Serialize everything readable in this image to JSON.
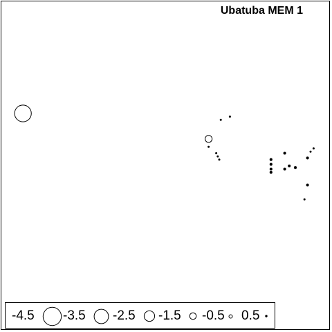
{
  "chart_data": {
    "type": "scatter",
    "title": "Ubatuba MEM 1",
    "axes_visible": false,
    "grid": false,
    "legend_position": "bottom-left",
    "legend": [
      {
        "label": "-4.5",
        "value": -4.5,
        "fill": "open"
      },
      {
        "label": "-3.5",
        "value": -3.5,
        "fill": "open"
      },
      {
        "label": "-2.5",
        "value": -2.5,
        "fill": "open"
      },
      {
        "label": "-1.5",
        "value": -1.5,
        "fill": "open"
      },
      {
        "label": "-0.5",
        "value": -0.5,
        "fill": "open"
      },
      {
        "label": "0.5",
        "value": 0.5,
        "fill": "filled"
      }
    ],
    "points": [
      {
        "x": -0.94,
        "y": 0.4,
        "value": -4.1
      },
      {
        "x": 0.28,
        "y": 0.24,
        "value": -1.6
      },
      {
        "x": 0.36,
        "y": 0.36,
        "value": 0.3
      },
      {
        "x": 0.42,
        "y": 0.38,
        "value": 0.3
      },
      {
        "x": 0.28,
        "y": 0.19,
        "value": 0.3
      },
      {
        "x": 0.33,
        "y": 0.15,
        "value": 0.3
      },
      {
        "x": 0.34,
        "y": 0.13,
        "value": 0.4
      },
      {
        "x": 0.35,
        "y": 0.11,
        "value": 0.3
      },
      {
        "x": 0.69,
        "y": 0.11,
        "value": 0.6
      },
      {
        "x": 0.69,
        "y": 0.08,
        "value": 0.6
      },
      {
        "x": 0.69,
        "y": 0.05,
        "value": 0.6
      },
      {
        "x": 0.69,
        "y": 0.03,
        "value": 0.6
      },
      {
        "x": 0.78,
        "y": 0.15,
        "value": 0.6
      },
      {
        "x": 0.78,
        "y": 0.05,
        "value": 0.6
      },
      {
        "x": 0.81,
        "y": 0.07,
        "value": 0.6
      },
      {
        "x": 0.85,
        "y": 0.06,
        "value": 0.6
      },
      {
        "x": 0.93,
        "y": 0.12,
        "value": 0.6
      },
      {
        "x": 0.95,
        "y": 0.16,
        "value": 0.4
      },
      {
        "x": 0.97,
        "y": 0.18,
        "value": 0.4
      },
      {
        "x": 0.93,
        "y": -0.05,
        "value": 0.6
      },
      {
        "x": 0.91,
        "y": -0.14,
        "value": 0.3
      }
    ]
  }
}
